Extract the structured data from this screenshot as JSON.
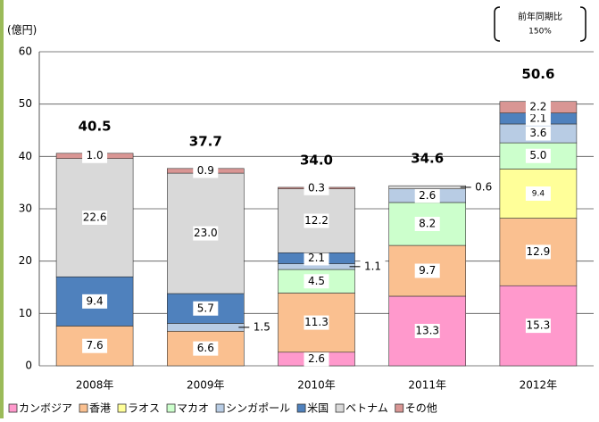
{
  "chart_data": {
    "type": "bar",
    "stacked": true,
    "y_axis_label": "(億円)",
    "annotation": [
      "前年同期比",
      "150%"
    ],
    "categories": [
      "2008年",
      "2009年",
      "2010年",
      "2011年",
      "2012年"
    ],
    "total_labels": [
      "40.5",
      "37.7",
      "34.0",
      "34.6",
      "50.6"
    ],
    "series": [
      {
        "name": "カンボジア",
        "color": "#ff99cc",
        "values": [
          null,
          null,
          2.6,
          13.3,
          15.3
        ],
        "value_labels": [
          null,
          null,
          "2.6",
          "13.3",
          "15.3"
        ]
      },
      {
        "name": "香港",
        "color": "#fac090",
        "values": [
          7.6,
          6.6,
          11.3,
          9.7,
          12.9
        ],
        "value_labels": [
          "7.6",
          "6.6",
          "11.3",
          "9.7",
          "12.9"
        ]
      },
      {
        "name": "ラオス",
        "color": "#ffff99",
        "values": [
          null,
          null,
          null,
          null,
          9.4
        ],
        "value_labels": [
          null,
          null,
          null,
          null,
          "9.4"
        ]
      },
      {
        "name": "マカオ",
        "color": "#ccffcc",
        "values": [
          null,
          null,
          4.5,
          8.2,
          5.0
        ],
        "value_labels": [
          null,
          null,
          "4.5",
          "8.2",
          "5.0"
        ]
      },
      {
        "name": "シンガポール",
        "color": "#b8cce4",
        "values": [
          null,
          1.5,
          1.1,
          2.6,
          3.6
        ],
        "value_labels": [
          null,
          "1.5",
          "1.1",
          "2.6",
          "3.6"
        ]
      },
      {
        "name": "米国",
        "color": "#4f81bd",
        "values": [
          9.4,
          5.7,
          2.1,
          null,
          2.1
        ],
        "value_labels": [
          "9.4",
          "5.7",
          "2.1",
          null,
          "2.1"
        ]
      },
      {
        "name": "ベトナム",
        "color": "#d9d9d9",
        "values": [
          22.6,
          23.0,
          12.2,
          0.6,
          null
        ],
        "value_labels": [
          "22.6",
          "23.0",
          "12.2",
          "0.6",
          null
        ]
      },
      {
        "name": "その他",
        "color": "#d99694",
        "values": [
          1.0,
          0.9,
          0.3,
          null,
          2.2
        ],
        "value_labels": [
          "1.0",
          "0.9",
          "0.3",
          null,
          "2.2"
        ]
      }
    ],
    "ylim": [
      0,
      60
    ],
    "yticks": [
      0,
      10,
      20,
      30,
      40,
      50,
      60
    ],
    "grid": true
  }
}
